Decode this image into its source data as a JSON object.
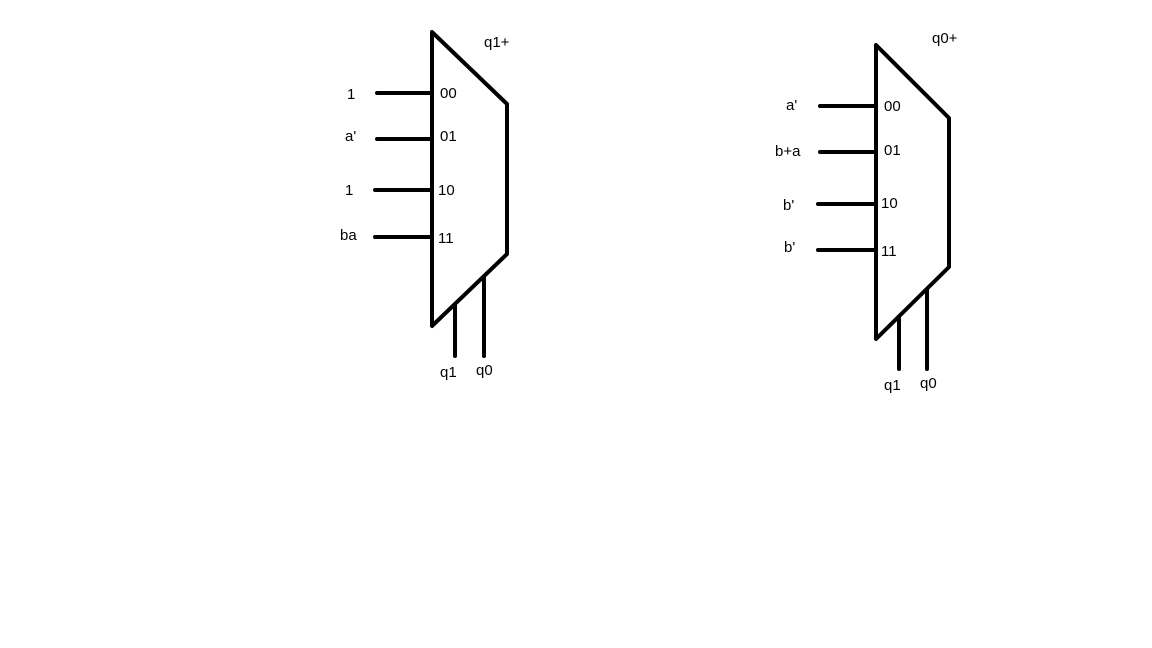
{
  "muxes": [
    {
      "output_label": "q1+",
      "inputs": [
        {
          "select": "00",
          "signal": "1"
        },
        {
          "select": "01",
          "signal": "a'"
        },
        {
          "select": "10",
          "signal": "1"
        },
        {
          "select": "11",
          "signal": "ba"
        }
      ],
      "select_lines": [
        "q1",
        "q0"
      ]
    },
    {
      "output_label": "q0+",
      "inputs": [
        {
          "select": "00",
          "signal": "a'"
        },
        {
          "select": "01",
          "signal": "b+a"
        },
        {
          "select": "10",
          "signal": "b'"
        },
        {
          "select": "11",
          "signal": "b'"
        }
      ],
      "select_lines": [
        "q1",
        "q0"
      ]
    }
  ]
}
